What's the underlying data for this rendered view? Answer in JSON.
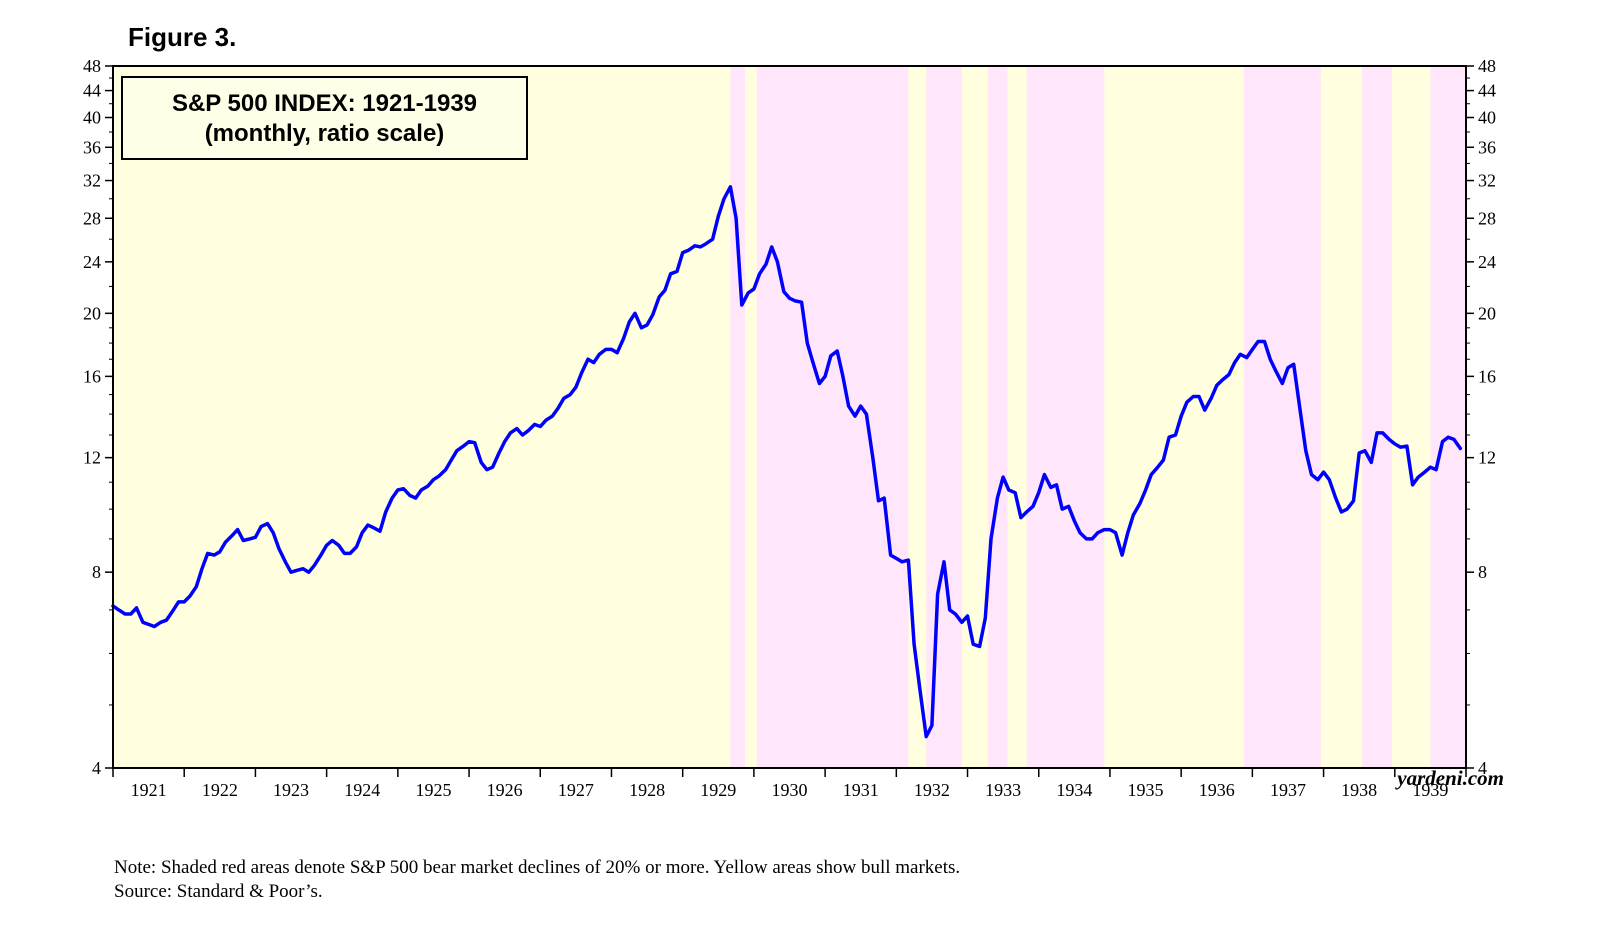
{
  "figure_label": "Figure 3.",
  "chart_data": {
    "type": "line",
    "title": "S&P 500 INDEX: 1921-1939",
    "subtitle": "(monthly, ratio scale)",
    "scale": "log",
    "ylim": [
      4,
      48
    ],
    "xlim": [
      1921.0,
      1940.0
    ],
    "y_ticks": [
      4,
      8,
      12,
      16,
      20,
      24,
      28,
      32,
      36,
      40,
      44,
      48
    ],
    "x_tick_labels": [
      "1921",
      "1922",
      "1923",
      "1924",
      "1925",
      "1926",
      "1927",
      "1928",
      "1929",
      "1930",
      "1931",
      "1932",
      "1933",
      "1934",
      "1935",
      "1936",
      "1937",
      "1938",
      "1939"
    ],
    "series": [
      {
        "color": "#0000ff",
        "points": [
          [
            1921.0,
            7.1
          ],
          [
            1921.08,
            7.0
          ],
          [
            1921.17,
            6.9
          ],
          [
            1921.25,
            6.9
          ],
          [
            1921.33,
            7.05
          ],
          [
            1921.42,
            6.7
          ],
          [
            1921.5,
            6.65
          ],
          [
            1921.58,
            6.6
          ],
          [
            1921.67,
            6.7
          ],
          [
            1921.75,
            6.75
          ],
          [
            1921.83,
            6.95
          ],
          [
            1921.92,
            7.2
          ],
          [
            1922.0,
            7.2
          ],
          [
            1922.08,
            7.35
          ],
          [
            1922.17,
            7.6
          ],
          [
            1922.25,
            8.1
          ],
          [
            1922.33,
            8.55
          ],
          [
            1922.42,
            8.5
          ],
          [
            1922.5,
            8.6
          ],
          [
            1922.58,
            8.9
          ],
          [
            1922.67,
            9.1
          ],
          [
            1922.75,
            9.3
          ],
          [
            1922.83,
            8.95
          ],
          [
            1922.92,
            9.0
          ],
          [
            1923.0,
            9.05
          ],
          [
            1923.08,
            9.4
          ],
          [
            1923.17,
            9.5
          ],
          [
            1923.25,
            9.2
          ],
          [
            1923.33,
            8.7
          ],
          [
            1923.42,
            8.3
          ],
          [
            1923.5,
            8.0
          ],
          [
            1923.58,
            8.05
          ],
          [
            1923.67,
            8.1
          ],
          [
            1923.75,
            8.0
          ],
          [
            1923.83,
            8.2
          ],
          [
            1923.92,
            8.5
          ],
          [
            1924.0,
            8.8
          ],
          [
            1924.08,
            8.95
          ],
          [
            1924.17,
            8.8
          ],
          [
            1924.25,
            8.55
          ],
          [
            1924.33,
            8.55
          ],
          [
            1924.42,
            8.75
          ],
          [
            1924.5,
            9.2
          ],
          [
            1924.58,
            9.45
          ],
          [
            1924.67,
            9.35
          ],
          [
            1924.75,
            9.25
          ],
          [
            1924.83,
            9.9
          ],
          [
            1924.92,
            10.4
          ],
          [
            1925.0,
            10.7
          ],
          [
            1925.08,
            10.75
          ],
          [
            1925.17,
            10.5
          ],
          [
            1925.25,
            10.4
          ],
          [
            1925.33,
            10.7
          ],
          [
            1925.42,
            10.85
          ],
          [
            1925.5,
            11.1
          ],
          [
            1925.58,
            11.25
          ],
          [
            1925.67,
            11.5
          ],
          [
            1925.75,
            11.9
          ],
          [
            1925.83,
            12.3
          ],
          [
            1925.92,
            12.5
          ],
          [
            1926.0,
            12.7
          ],
          [
            1926.08,
            12.65
          ],
          [
            1926.17,
            11.8
          ],
          [
            1926.25,
            11.5
          ],
          [
            1926.33,
            11.6
          ],
          [
            1926.42,
            12.2
          ],
          [
            1926.5,
            12.7
          ],
          [
            1926.58,
            13.1
          ],
          [
            1926.67,
            13.3
          ],
          [
            1926.75,
            13.0
          ],
          [
            1926.83,
            13.2
          ],
          [
            1926.92,
            13.5
          ],
          [
            1927.0,
            13.4
          ],
          [
            1927.08,
            13.7
          ],
          [
            1927.17,
            13.9
          ],
          [
            1927.25,
            14.3
          ],
          [
            1927.33,
            14.8
          ],
          [
            1927.42,
            15.0
          ],
          [
            1927.5,
            15.4
          ],
          [
            1927.58,
            16.2
          ],
          [
            1927.67,
            17.0
          ],
          [
            1927.75,
            16.8
          ],
          [
            1927.83,
            17.3
          ],
          [
            1927.92,
            17.6
          ],
          [
            1928.0,
            17.6
          ],
          [
            1928.08,
            17.4
          ],
          [
            1928.17,
            18.3
          ],
          [
            1928.25,
            19.4
          ],
          [
            1928.33,
            20.0
          ],
          [
            1928.42,
            19.0
          ],
          [
            1928.5,
            19.2
          ],
          [
            1928.58,
            19.9
          ],
          [
            1928.67,
            21.2
          ],
          [
            1928.75,
            21.7
          ],
          [
            1928.83,
            23.0
          ],
          [
            1928.92,
            23.2
          ],
          [
            1929.0,
            24.8
          ],
          [
            1929.08,
            25.0
          ],
          [
            1929.17,
            25.4
          ],
          [
            1929.25,
            25.3
          ],
          [
            1929.33,
            25.6
          ],
          [
            1929.42,
            26.0
          ],
          [
            1929.5,
            28.2
          ],
          [
            1929.58,
            30.0
          ],
          [
            1929.67,
            31.3
          ],
          [
            1929.75,
            28.0
          ],
          [
            1929.83,
            20.6
          ],
          [
            1929.92,
            21.5
          ],
          [
            1930.0,
            21.8
          ],
          [
            1930.08,
            23.0
          ],
          [
            1930.17,
            23.8
          ],
          [
            1930.25,
            25.3
          ],
          [
            1930.33,
            24.0
          ],
          [
            1930.42,
            21.6
          ],
          [
            1930.5,
            21.1
          ],
          [
            1930.58,
            20.9
          ],
          [
            1930.67,
            20.8
          ],
          [
            1930.75,
            18.0
          ],
          [
            1930.83,
            16.8
          ],
          [
            1930.92,
            15.6
          ],
          [
            1931.0,
            16.0
          ],
          [
            1931.08,
            17.2
          ],
          [
            1931.17,
            17.5
          ],
          [
            1931.25,
            16.0
          ],
          [
            1931.33,
            14.4
          ],
          [
            1931.42,
            13.9
          ],
          [
            1931.5,
            14.4
          ],
          [
            1931.58,
            14.0
          ],
          [
            1931.67,
            12.0
          ],
          [
            1931.75,
            10.3
          ],
          [
            1931.83,
            10.4
          ],
          [
            1931.92,
            8.5
          ],
          [
            1932.0,
            8.4
          ],
          [
            1932.08,
            8.3
          ],
          [
            1932.17,
            8.35
          ],
          [
            1932.25,
            6.2
          ],
          [
            1932.33,
            5.3
          ],
          [
            1932.42,
            4.47
          ],
          [
            1932.5,
            4.65
          ],
          [
            1932.58,
            7.4
          ],
          [
            1932.67,
            8.3
          ],
          [
            1932.75,
            7.0
          ],
          [
            1932.83,
            6.9
          ],
          [
            1932.92,
            6.7
          ],
          [
            1933.0,
            6.85
          ],
          [
            1933.08,
            6.2
          ],
          [
            1933.17,
            6.15
          ],
          [
            1933.25,
            6.8
          ],
          [
            1933.33,
            9.0
          ],
          [
            1933.42,
            10.4
          ],
          [
            1933.5,
            11.2
          ],
          [
            1933.58,
            10.7
          ],
          [
            1933.67,
            10.6
          ],
          [
            1933.75,
            9.7
          ],
          [
            1933.83,
            9.9
          ],
          [
            1933.92,
            10.1
          ],
          [
            1934.0,
            10.6
          ],
          [
            1934.08,
            11.3
          ],
          [
            1934.17,
            10.8
          ],
          [
            1934.25,
            10.9
          ],
          [
            1934.33,
            10.0
          ],
          [
            1934.42,
            10.1
          ],
          [
            1934.5,
            9.6
          ],
          [
            1934.58,
            9.2
          ],
          [
            1934.67,
            9.0
          ],
          [
            1934.75,
            9.0
          ],
          [
            1934.83,
            9.2
          ],
          [
            1934.92,
            9.3
          ],
          [
            1935.0,
            9.3
          ],
          [
            1935.08,
            9.2
          ],
          [
            1935.17,
            8.5
          ],
          [
            1935.25,
            9.2
          ],
          [
            1935.33,
            9.8
          ],
          [
            1935.42,
            10.2
          ],
          [
            1935.5,
            10.7
          ],
          [
            1935.58,
            11.3
          ],
          [
            1935.67,
            11.6
          ],
          [
            1935.75,
            11.9
          ],
          [
            1935.83,
            12.9
          ],
          [
            1935.92,
            13.0
          ],
          [
            1936.0,
            13.9
          ],
          [
            1936.08,
            14.6
          ],
          [
            1936.17,
            14.9
          ],
          [
            1936.25,
            14.9
          ],
          [
            1936.33,
            14.2
          ],
          [
            1936.42,
            14.8
          ],
          [
            1936.5,
            15.5
          ],
          [
            1936.58,
            15.8
          ],
          [
            1936.67,
            16.1
          ],
          [
            1936.75,
            16.8
          ],
          [
            1936.83,
            17.3
          ],
          [
            1936.92,
            17.1
          ],
          [
            1937.0,
            17.6
          ],
          [
            1937.08,
            18.1
          ],
          [
            1937.17,
            18.1
          ],
          [
            1937.25,
            17.0
          ],
          [
            1937.33,
            16.3
          ],
          [
            1937.42,
            15.6
          ],
          [
            1937.5,
            16.5
          ],
          [
            1937.58,
            16.7
          ],
          [
            1937.67,
            14.2
          ],
          [
            1937.75,
            12.3
          ],
          [
            1937.83,
            11.3
          ],
          [
            1937.92,
            11.1
          ],
          [
            1938.0,
            11.4
          ],
          [
            1938.08,
            11.1
          ],
          [
            1938.17,
            10.4
          ],
          [
            1938.25,
            9.9
          ],
          [
            1938.33,
            10.0
          ],
          [
            1938.42,
            10.3
          ],
          [
            1938.5,
            12.2
          ],
          [
            1938.58,
            12.3
          ],
          [
            1938.67,
            11.8
          ],
          [
            1938.75,
            13.1
          ],
          [
            1938.83,
            13.1
          ],
          [
            1938.92,
            12.8
          ],
          [
            1939.0,
            12.6
          ],
          [
            1939.08,
            12.45
          ],
          [
            1939.17,
            12.5
          ],
          [
            1939.25,
            10.9
          ],
          [
            1939.33,
            11.2
          ],
          [
            1939.42,
            11.4
          ],
          [
            1939.5,
            11.6
          ],
          [
            1939.58,
            11.5
          ],
          [
            1939.67,
            12.7
          ],
          [
            1939.75,
            12.9
          ],
          [
            1939.83,
            12.8
          ],
          [
            1939.92,
            12.4
          ]
        ]
      }
    ],
    "shaded_regions": {
      "bull_color": "#ffffe0",
      "bear_color": "#ffe6fa",
      "bear": [
        [
          1929.67,
          1929.875
        ],
        [
          1930.04,
          1932.17
        ],
        [
          1932.42,
          1932.92
        ],
        [
          1933.29,
          1933.56
        ],
        [
          1933.83,
          1934.92
        ],
        [
          1936.88,
          1937.96
        ],
        [
          1938.54,
          1938.96
        ],
        [
          1939.5,
          1940.0
        ]
      ]
    }
  },
  "source_mark": "yardeni.com",
  "notes": [
    "Note: Shaded red areas denote S&P 500 bear market declines of 20% or more. Yellow areas show bull markets.",
    "Source: Standard & Poor’s."
  ]
}
